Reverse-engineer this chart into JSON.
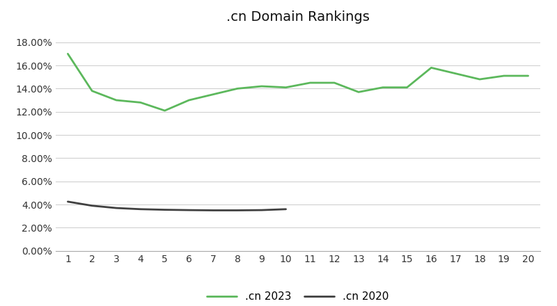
{
  "title": ".cn Domain Rankings",
  "x_values": [
    1,
    2,
    3,
    4,
    5,
    6,
    7,
    8,
    9,
    10,
    11,
    12,
    13,
    14,
    15,
    16,
    17,
    18,
    19,
    20
  ],
  "cn_2023": [
    0.17,
    0.138,
    0.13,
    0.128,
    0.121,
    0.13,
    0.135,
    0.14,
    0.142,
    0.141,
    0.145,
    0.145,
    0.137,
    0.141,
    0.141,
    0.158,
    0.153,
    0.148,
    0.151,
    0.151
  ],
  "cn_2020_x": [
    1,
    2,
    3,
    4,
    5,
    6,
    7,
    8,
    9,
    10
  ],
  "cn_2020": [
    0.0425,
    0.039,
    0.037,
    0.036,
    0.0355,
    0.0352,
    0.035,
    0.035,
    0.0352,
    0.036
  ],
  "color_2023": "#5cb85c",
  "color_2020": "#404040",
  "legend_2023": ".cn 2023",
  "legend_2020": ".cn 2020",
  "ylim_min": 0.0,
  "ylim_max": 0.19,
  "ytick_step": 0.02,
  "background_color": "#ffffff",
  "grid_color": "#d0d0d0",
  "title_fontsize": 14,
  "tick_fontsize": 10,
  "legend_fontsize": 11,
  "line_width": 2.0
}
